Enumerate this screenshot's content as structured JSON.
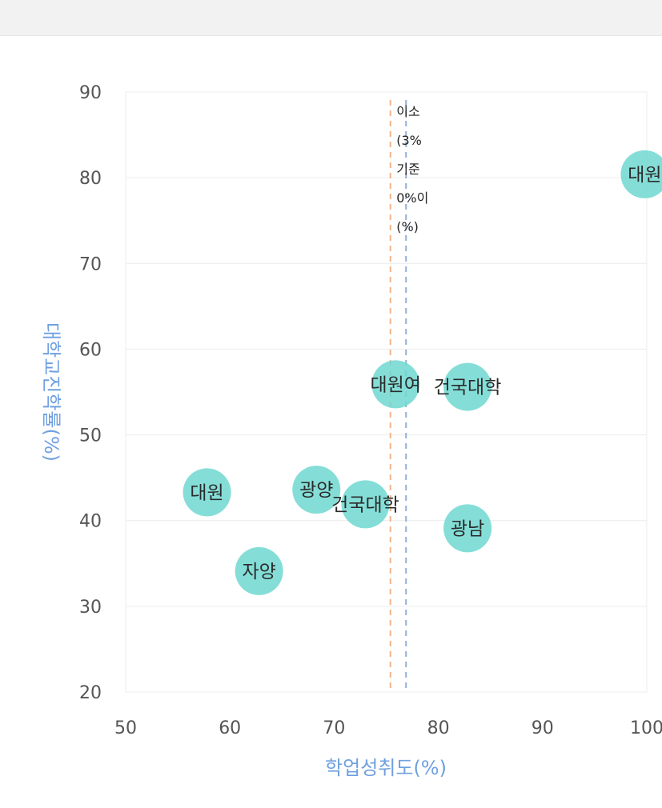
{
  "chart_data": {
    "type": "scatter",
    "xlabel": "학업성취도(%)",
    "ylabel": "대학교진학률(%)",
    "xlim": [
      50,
      100
    ],
    "ylim": [
      20,
      90
    ],
    "x_ticks": [
      "50",
      "60",
      "70",
      "80",
      "90",
      "100"
    ],
    "y_ticks": [
      "20",
      "30",
      "40",
      "50",
      "60",
      "70",
      "80",
      "90"
    ],
    "grid": "horizontal",
    "marker_color": "#6fd8d0",
    "reference_lines": [
      {
        "x": 75.4,
        "color": "#f2b48a"
      },
      {
        "x": 76.9,
        "color": "#8fb0d8",
        "label_lines": [
          "이\u0000\u0000",
          "(\u0000\u0000",
          "\u0000\u0000\u0000",
          "\u0000\u0000\u0000",
          "\u0000\u0000"
        ]
      }
    ],
    "points": [
      {
        "label": "대원",
        "x": 57.8,
        "y": 43.3
      },
      {
        "label": "자양",
        "x": 62.8,
        "y": 34.1
      },
      {
        "label": "광양",
        "x": 68.3,
        "y": 43.6
      },
      {
        "label": "건국대학",
        "x": 73.0,
        "y": 41.9
      },
      {
        "label": "대원여",
        "x": 75.9,
        "y": 55.9
      },
      {
        "label": "건국대학",
        "x": 82.8,
        "y": 55.6
      },
      {
        "label": "광남",
        "x": 82.8,
        "y": 39.1
      },
      {
        "label": "대원",
        "x": 99.8,
        "y": 80.4
      }
    ]
  }
}
